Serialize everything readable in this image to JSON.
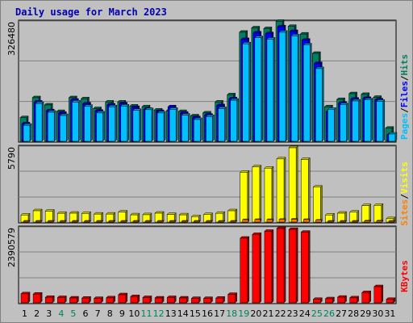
{
  "chart_data": {
    "type": "bar",
    "title": "Daily usage for March 2023",
    "colors": {
      "hits": "#007f5f",
      "files": "#0000ff",
      "pages": "#00c0ff",
      "visits": "#ffff00",
      "sites": "#ff8000",
      "kbytes": "#ff0000",
      "weekend": "#00805c",
      "weekday": "#000000",
      "background": "#c0c0c0"
    },
    "categories": [
      "1",
      "2",
      "3",
      "4",
      "5",
      "6",
      "7",
      "8",
      "9",
      "10",
      "11",
      "12",
      "13",
      "14",
      "15",
      "16",
      "17",
      "18",
      "19",
      "20",
      "21",
      "22",
      "23",
      "24",
      "25",
      "26",
      "27",
      "28",
      "29",
      "30",
      "31"
    ],
    "weekend": [
      "4",
      "5",
      "11",
      "12",
      "18",
      "19",
      "25",
      "26"
    ],
    "panels": [
      {
        "id": "hits",
        "ymax_label": "326480",
        "ylim": [
          0,
          326480
        ],
        "series": [
          {
            "name": "Hits",
            "values": [
              65000,
              120000,
              100000,
              82000,
              120000,
              117000,
              90000,
              108000,
              108000,
              97000,
              95000,
              86000,
              84000,
              82000,
              70000,
              78000,
              108000,
              128000,
              300000,
              312000,
              310000,
              330000,
              316000,
              295000,
              242000,
              95000,
              115000,
              131000,
              129000,
              121000,
              36000
            ]
          },
          {
            "name": "Files",
            "values": [
              48000,
              108000,
              84000,
              77000,
              113000,
              103000,
              83000,
              100000,
              103000,
              93000,
              88000,
              82000,
              95000,
              77000,
              65000,
              72000,
              98000,
              117000,
              280000,
              298000,
              296000,
              315000,
              302000,
              278000,
              214000,
              82000,
              105000,
              116000,
              118000,
              114000,
              18000
            ]
          },
          {
            "name": "Pages",
            "values": [
              44000,
              104000,
              80000,
              71000,
              108000,
              96000,
              78000,
              95000,
              97000,
              85000,
              87000,
              78000,
              88000,
              72000,
              60000,
              68000,
              90000,
              113000,
              268000,
              285000,
              281000,
              300000,
              290000,
              265000,
              200000,
              88000,
              101000,
              111000,
              114000,
              110000,
              20000
            ]
          }
        ],
        "side_labels": [
          "Pages",
          "Files",
          "Hits"
        ]
      },
      {
        "id": "visits",
        "ymax_label": "5790",
        "ylim": [
          0,
          5790
        ],
        "series": [
          {
            "name": "Visits",
            "values": [
              550,
              880,
              850,
              680,
              690,
              670,
              620,
              620,
              780,
              560,
              570,
              690,
              590,
              560,
              420,
              580,
              680,
              880,
              3880,
              4300,
              4200,
              4920,
              5790,
              4880,
              2720,
              550,
              690,
              770,
              1280,
              1300,
              260
            ]
          },
          {
            "name": "Sites",
            "values": [
              40,
              60,
              55,
              45,
              45,
              45,
              40,
              40,
              50,
              40,
              40,
              45,
              40,
              40,
              35,
              40,
              45,
              60,
              180,
              190,
              185,
              200,
              220,
              190,
              140,
              40,
              45,
              50,
              80,
              80,
              20
            ]
          }
        ],
        "side_labels": [
          "Sites",
          "Visits"
        ]
      },
      {
        "id": "kbytes",
        "ymax_label": "2390579",
        "ylim": [
          0,
          2390579
        ],
        "series": [
          {
            "name": "KBytes",
            "values": [
              290000,
              280000,
              175000,
              170000,
              155000,
              150000,
              140000,
              160000,
              260000,
              200000,
              170000,
              155000,
              170000,
              155000,
              140000,
              140000,
              150000,
              270000,
              2080000,
              2200000,
              2300000,
              2390000,
              2360000,
              2270000,
              110000,
              130000,
              180000,
              160000,
              330000,
              520000,
              110000
            ]
          }
        ],
        "side_labels": [
          "KBytes"
        ]
      }
    ]
  }
}
